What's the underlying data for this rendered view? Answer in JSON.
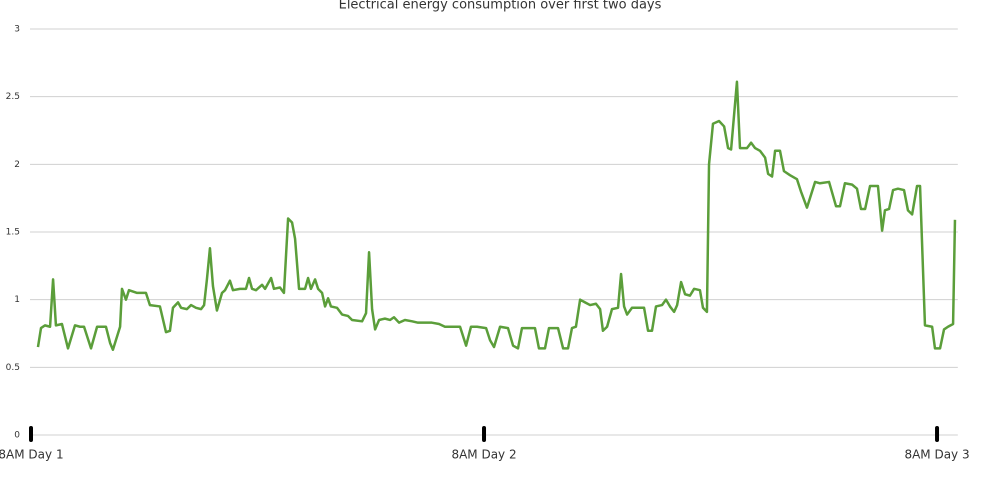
{
  "chart_data": {
    "type": "line",
    "title": "Electrical energy consumption over first two days",
    "x": [
      0.37,
      0.53,
      0.74,
      1.01,
      1.17,
      1.32,
      1.64,
      1.96,
      2.33,
      2.6,
      2.81,
      3.18,
      3.5,
      3.97,
      4.19,
      4.34,
      4.72,
      4.82,
      5.03,
      5.19,
      5.62,
      6.09,
      6.3,
      6.83,
      7.15,
      7.36,
      7.52,
      7.79,
      7.95,
      8.26,
      8.48,
      8.74,
      9.01,
      9.17,
      9.32,
      9.48,
      9.64,
      9.85,
      10.12,
      10.28,
      10.54,
      10.7,
      11.07,
      11.39,
      11.55,
      11.71,
      11.92,
      12.24,
      12.4,
      12.72,
      12.87,
      13.19,
      13.4,
      13.62,
      13.83,
      13.99,
      14.2,
      14.52,
      14.68,
      14.83,
      15.05,
      15.21,
      15.42,
      15.58,
      15.74,
      15.89,
      16.21,
      16.48,
      16.79,
      17.01,
      17.54,
      17.75,
      17.91,
      18.07,
      18.23,
      18.44,
      18.75,
      19.02,
      19.23,
      19.5,
      19.81,
      20.19,
      20.5,
      20.87,
      21.24,
      21.62,
      21.93,
      22.3,
      22.73,
      23.05,
      23.31,
      23.63,
      24.11,
      24.32,
      24.53,
      24.85,
      25.27,
      25.54,
      25.8,
      26.01,
      26.44,
      26.7,
      26.91,
      27.23,
      27.44,
      27.92,
      28.19,
      28.45,
      28.66,
      28.87,
      29.09,
      29.35,
      29.62,
      29.93,
      30.15,
      30.3,
      30.52,
      30.78,
      31.1,
      31.26,
      31.42,
      31.58,
      31.84,
      32.48,
      32.69,
      32.9,
      33.11,
      33.43,
      33.64,
      33.85,
      34.07,
      34.23,
      34.44,
      34.65,
      34.91,
      35.13,
      35.44,
      35.6,
      35.81,
      35.92,
      36.13,
      36.45,
      36.72,
      36.93,
      37.09,
      37.4,
      37.56,
      37.93,
      38.15,
      38.36,
      38.62,
      38.89,
      39.05,
      39.26,
      39.42,
      39.68,
      39.89,
      40.21,
      40.58,
      40.79,
      41.11,
      41.54,
      41.8,
      42.28,
      42.65,
      42.86,
      43.12,
      43.5,
      43.76,
      43.97,
      44.19,
      44.45,
      44.87,
      45.09,
      45.24,
      45.46,
      45.67,
      45.93,
      46.25,
      46.46,
      46.68,
      46.94,
      47.1,
      47.36,
      47.74,
      47.89,
      48.16,
      48.37,
      48.58,
      48.85,
      48.95
    ],
    "series": [
      {
        "color": "#5b9e3a",
        "values": [
          0.65,
          0.79,
          0.81,
          0.8,
          1.15,
          0.81,
          0.82,
          0.64,
          0.81,
          0.8,
          0.8,
          0.64,
          0.8,
          0.8,
          0.68,
          0.63,
          0.8,
          1.08,
          1.0,
          1.07,
          1.05,
          1.05,
          0.96,
          0.95,
          0.76,
          0.77,
          0.94,
          0.98,
          0.94,
          0.93,
          0.96,
          0.94,
          0.93,
          0.96,
          1.15,
          1.38,
          1.1,
          0.92,
          1.05,
          1.07,
          1.14,
          1.07,
          1.08,
          1.08,
          1.16,
          1.08,
          1.07,
          1.11,
          1.08,
          1.16,
          1.08,
          1.09,
          1.05,
          1.6,
          1.57,
          1.45,
          1.08,
          1.08,
          1.16,
          1.08,
          1.15,
          1.08,
          1.05,
          0.95,
          1.01,
          0.95,
          0.94,
          0.89,
          0.88,
          0.85,
          0.84,
          0.9,
          1.35,
          0.93,
          0.78,
          0.85,
          0.86,
          0.85,
          0.87,
          0.83,
          0.85,
          0.84,
          0.83,
          0.83,
          0.83,
          0.82,
          0.8,
          0.8,
          0.8,
          0.66,
          0.8,
          0.8,
          0.79,
          0.7,
          0.65,
          0.8,
          0.79,
          0.66,
          0.64,
          0.79,
          0.79,
          0.79,
          0.64,
          0.64,
          0.79,
          0.79,
          0.64,
          0.64,
          0.79,
          0.8,
          1.0,
          0.98,
          0.96,
          0.97,
          0.93,
          0.77,
          0.8,
          0.93,
          0.94,
          1.19,
          0.95,
          0.89,
          0.94,
          0.94,
          0.77,
          0.77,
          0.95,
          0.96,
          1.0,
          0.95,
          0.91,
          0.96,
          1.13,
          1.04,
          1.03,
          1.08,
          1.07,
          0.94,
          0.91,
          2.0,
          2.3,
          2.32,
          2.28,
          2.12,
          2.11,
          2.61,
          2.12,
          2.12,
          2.16,
          2.12,
          2.1,
          2.05,
          1.93,
          1.91,
          2.1,
          2.1,
          1.95,
          1.92,
          1.89,
          1.8,
          1.68,
          1.87,
          1.86,
          1.87,
          1.69,
          1.69,
          1.86,
          1.85,
          1.82,
          1.67,
          1.67,
          1.84,
          1.84,
          1.51,
          1.66,
          1.67,
          1.81,
          1.82,
          1.81,
          1.66,
          1.63,
          1.84,
          1.84,
          0.81,
          0.8,
          0.64,
          0.64,
          0.78,
          0.8,
          0.82,
          1.59
        ]
      }
    ],
    "xlim": [
      0,
      49.1
    ],
    "xticks": [
      {
        "value": 0,
        "label": "8AM Day 1"
      },
      {
        "value": 24,
        "label": "8AM Day 2"
      },
      {
        "value": 48,
        "label": "8AM Day 3"
      }
    ],
    "ylim": [
      0,
      3
    ],
    "yticks": [
      0,
      0.5,
      1,
      1.5,
      2,
      2.5,
      3
    ],
    "grid": true
  }
}
